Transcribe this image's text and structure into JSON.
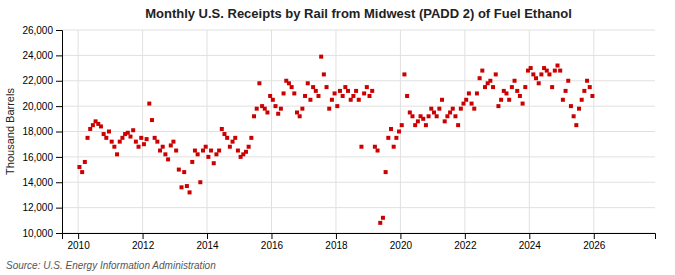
{
  "chart_data": {
    "type": "scatter",
    "title": "Monthly U.S. Receipts by Rail from Midwest (PADD 2) of Fuel Ethanol",
    "y_label": "Thousand Barrels",
    "annotations": [
      "Source: U.S. Energy Information Administration"
    ],
    "color": "#cc0000",
    "marker": "square",
    "grid": true,
    "xlim": [
      2009.5,
      2027.9
    ],
    "xticks": [
      2010,
      2012,
      2014,
      2016,
      2018,
      2020,
      2022,
      2024,
      2026
    ],
    "ylim": [
      10000,
      26000
    ],
    "yticks": [
      {
        "value": 10000,
        "label": "10,000"
      },
      {
        "value": 12000,
        "label": "12,000"
      },
      {
        "value": 14000,
        "label": "14,000"
      },
      {
        "value": 16000,
        "label": "16,000"
      },
      {
        "value": 18000,
        "label": "18,000"
      },
      {
        "value": 20000,
        "label": "20,000"
      },
      {
        "value": 22000,
        "label": "22,000"
      },
      {
        "value": 24000,
        "label": "24,000"
      },
      {
        "value": 26000,
        "label": "26,000"
      }
    ],
    "x": [
      2010.0416666666667,
      2010.125,
      2010.2083333333333,
      2010.2916666666667,
      2010.375,
      2010.4583333333333,
      2010.5416666666667,
      2010.625,
      2010.7083333333333,
      2010.7916666666667,
      2010.875,
      2010.9583333333333,
      2011.0416666666667,
      2011.125,
      2011.2083333333333,
      2011.2916666666667,
      2011.375,
      2011.4583333333333,
      2011.5416666666667,
      2011.625,
      2011.7083333333333,
      2011.7916666666667,
      2011.875,
      2011.9583333333333,
      2012.0416666666667,
      2012.125,
      2012.2083333333333,
      2012.2916666666667,
      2012.375,
      2012.4583333333333,
      2012.5416666666667,
      2012.625,
      2012.7083333333333,
      2012.7916666666667,
      2012.875,
      2012.9583333333333,
      2013.0416666666667,
      2013.125,
      2013.2083333333333,
      2013.2916666666667,
      2013.375,
      2013.4583333333333,
      2013.5416666666667,
      2013.625,
      2013.7083333333333,
      2013.7916666666667,
      2013.875,
      2013.9583333333333,
      2014.0416666666667,
      2014.125,
      2014.2083333333333,
      2014.2916666666667,
      2014.375,
      2014.4583333333333,
      2014.5416666666667,
      2014.625,
      2014.7083333333333,
      2014.7916666666667,
      2014.875,
      2014.9583333333333,
      2015.0416666666667,
      2015.125,
      2015.2083333333333,
      2015.2916666666667,
      2015.375,
      2015.4583333333333,
      2015.5416666666667,
      2015.625,
      2015.7083333333333,
      2015.7916666666667,
      2015.875,
      2015.9583333333333,
      2016.0416666666667,
      2016.125,
      2016.2083333333333,
      2016.2916666666667,
      2016.375,
      2016.4583333333333,
      2016.5416666666667,
      2016.625,
      2016.7083333333333,
      2016.7916666666667,
      2016.875,
      2016.9583333333333,
      2017.0416666666667,
      2017.125,
      2017.2083333333333,
      2017.2916666666667,
      2017.375,
      2017.4583333333333,
      2017.5416666666667,
      2017.625,
      2017.7083333333333,
      2017.7916666666667,
      2017.875,
      2017.9583333333333,
      2018.0416666666667,
      2018.125,
      2018.2083333333333,
      2018.2916666666667,
      2018.375,
      2018.4583333333333,
      2018.5416666666667,
      2018.625,
      2018.7083333333333,
      2018.7916666666667,
      2018.875,
      2018.9583333333333,
      2019.0416666666667,
      2019.125,
      2019.2083333333333,
      2019.2916666666667,
      2019.375,
      2019.4583333333333,
      2019.5416666666667,
      2019.625,
      2019.7083333333333,
      2019.7916666666667,
      2019.875,
      2019.9583333333333,
      2020.0416666666667,
      2020.125,
      2020.2083333333333,
      2020.2916666666667,
      2020.375,
      2020.4583333333333,
      2020.5416666666667,
      2020.625,
      2020.7083333333333,
      2020.7916666666667,
      2020.875,
      2020.9583333333333,
      2021.0416666666667,
      2021.125,
      2021.2083333333333,
      2021.2916666666667,
      2021.375,
      2021.4583333333333,
      2021.5416666666667,
      2021.625,
      2021.7083333333333,
      2021.7916666666667,
      2021.875,
      2021.9583333333333,
      2022.0416666666667,
      2022.125,
      2022.2083333333333,
      2022.2916666666667,
      2022.375,
      2022.4583333333333,
      2022.5416666666667,
      2022.625,
      2022.7083333333333,
      2022.7916666666667,
      2022.875,
      2022.9583333333333,
      2023.0416666666667,
      2023.125,
      2023.2083333333333,
      2023.2916666666667,
      2023.375,
      2023.4583333333333,
      2023.5416666666667,
      2023.625,
      2023.7083333333333,
      2023.7916666666667,
      2023.875,
      2023.9583333333333,
      2024.0416666666667,
      2024.125,
      2024.2083333333333,
      2024.2916666666667,
      2024.375,
      2024.4583333333333,
      2024.5416666666667,
      2024.625,
      2024.7083333333333,
      2024.7916666666667,
      2024.875,
      2024.9583333333333,
      2025.0416666666667,
      2025.125,
      2025.2083333333333,
      2025.2916666666667,
      2025.375,
      2025.4583333333333,
      2025.5416666666667,
      2025.625,
      2025.7083333333333,
      2025.7916666666667,
      2025.875,
      2025.9583333333333
    ],
    "values": [
      15200,
      14800,
      15600,
      17500,
      18200,
      18500,
      18800,
      18600,
      18400,
      17800,
      17500,
      18000,
      17200,
      16800,
      16200,
      17200,
      17500,
      17800,
      17900,
      17600,
      18100,
      17200,
      16800,
      17500,
      17000,
      17400,
      20200,
      18900,
      17500,
      17200,
      16500,
      16800,
      16200,
      15800,
      16900,
      17200,
      16500,
      15000,
      13600,
      14800,
      13700,
      13200,
      15600,
      16500,
      16200,
      14000,
      16500,
      16800,
      16000,
      16500,
      15500,
      16200,
      16500,
      18200,
      17800,
      17500,
      16800,
      17200,
      17500,
      16500,
      16000,
      16200,
      16400,
      16800,
      17500,
      19200,
      19800,
      21800,
      20000,
      19800,
      19500,
      20800,
      20500,
      20000,
      19400,
      19800,
      21000,
      22000,
      21800,
      21500,
      21000,
      19500,
      19200,
      19800,
      20800,
      21800,
      20500,
      21500,
      21200,
      20800,
      23900,
      22500,
      21500,
      19800,
      20500,
      21000,
      20000,
      21200,
      20800,
      21500,
      21200,
      20500,
      20800,
      21200,
      20500,
      16800,
      21000,
      21500,
      20800,
      21200,
      16800,
      16500,
      10800,
      11200,
      14800,
      17500,
      18200,
      16800,
      17500,
      18000,
      18500,
      22500,
      20800,
      19500,
      19200,
      18500,
      18800,
      19200,
      19000,
      18500,
      19200,
      19800,
      19500,
      19200,
      19800,
      20500,
      18800,
      19200,
      19500,
      19800,
      19200,
      18500,
      19800,
      20200,
      20500,
      21000,
      20200,
      19800,
      21000,
      22200,
      22800,
      21500,
      21800,
      22000,
      21500,
      22500,
      20000,
      20500,
      21200,
      21000,
      20500,
      21500,
      22000,
      21200,
      20800,
      20200,
      21500,
      22800,
      23000,
      22500,
      22200,
      21800,
      22500,
      23000,
      22800,
      22500,
      21500,
      22800,
      23200,
      22800,
      20500,
      21200,
      22000,
      20000,
      19200,
      18500,
      19800,
      20500,
      21200,
      22000,
      21500,
      20800
    ]
  }
}
